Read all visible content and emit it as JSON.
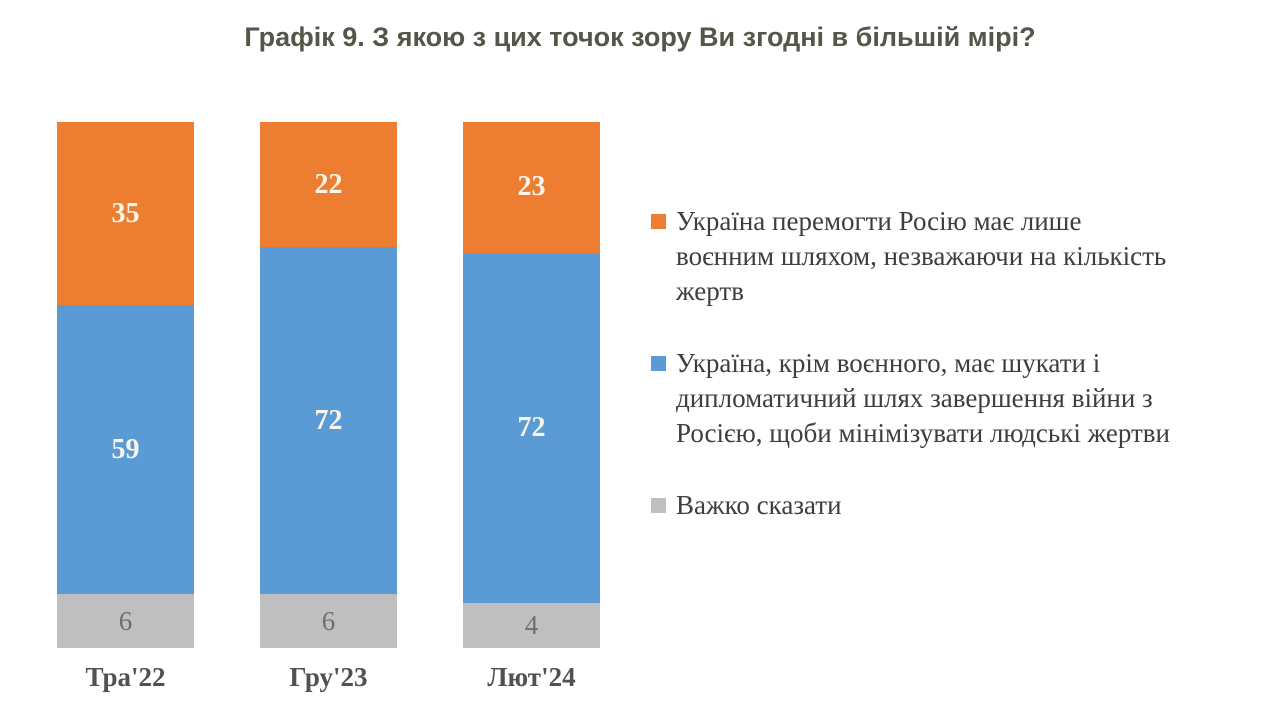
{
  "title": "Графік 9. З якою з цих точок зору Ви згодні в більшій мірі?",
  "colors": {
    "orange": "#ED7D31",
    "blue": "#5B9BD5",
    "gray": "#BFBFBF",
    "title_text": "#54564A",
    "axis_label_text": "#515151",
    "legend_text": "#3E3E3E",
    "value_label_light": "#FAF5EA",
    "value_label_gray": "#6F6F6F"
  },
  "chart_data": {
    "type": "bar",
    "stacked": true,
    "orientation": "vertical",
    "grid": false,
    "value_axis_max": 100,
    "legend_position": "right",
    "title": "Графік 9. З якою з цих точок зору Ви згодні в більшій мірі?",
    "categories": [
      "Тра'22",
      "Гру'23",
      "Лют'24"
    ],
    "series": [
      {
        "name": "Україна перемогти Росію має лише воєнним шляхом, незважаючи на кількість жертв",
        "color_key": "orange",
        "values": [
          35,
          22,
          23
        ]
      },
      {
        "name": "Україна, крім воєнного, має шукати і дипломатичний шлях завершення війни з Росією, щоби мінімізувати людські жертви",
        "color_key": "blue",
        "values": [
          59,
          72,
          72
        ]
      },
      {
        "name": "Важко сказати",
        "color_key": "gray",
        "values": [
          6,
          6,
          4
        ]
      }
    ]
  },
  "legend": {
    "items": [
      {
        "color_key": "orange",
        "label": "Україна перемогти Росію має лише воєнним шляхом, незважаючи на кількість жертв",
        "label_lines": [
          "Україна перемогти Росію має лише",
          "воєнним шляхом, незважаючи на кількість",
          "жертв"
        ]
      },
      {
        "color_key": "blue",
        "label": "Україна, крім воєнного, має шукати і дипломатичний шлях завершення війни з Росією, щоби мінімізувати людські жертви",
        "label_lines": [
          "Україна, крім воєнного, має шукати і",
          "дипломатичний шлях завершення війни з",
          "Росією, щоби мінімізувати людські жертви"
        ]
      },
      {
        "color_key": "gray",
        "label": "Важко сказати",
        "label_lines": [
          "Важко сказати"
        ]
      }
    ]
  }
}
